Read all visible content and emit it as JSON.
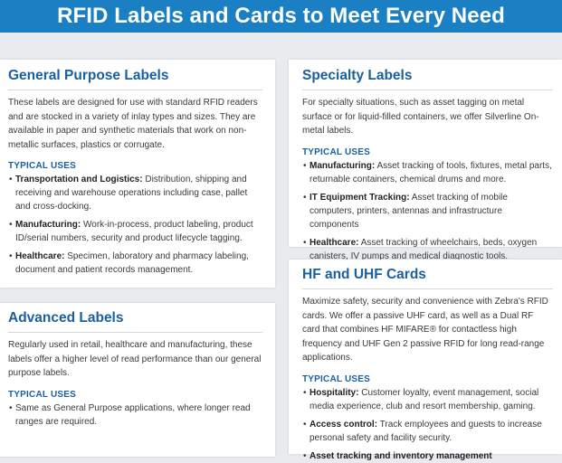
{
  "banner": {
    "title": "RFID Labels and Cards to Meet Every Need"
  },
  "cards": [
    {
      "title": "General Purpose Labels",
      "description": "These labels are designed for use with standard RFID readers and are stocked in a variety of inlay types and sizes. They are available in paper and synthetic materials that work on non-metallic surfaces, plastics or corrugate.",
      "uses_heading": "TYPICAL USES",
      "uses": [
        {
          "label": "Transportation and Logistics:",
          "text": " Distribution, shipping and receiving and warehouse operations including case, pallet and cross-docking."
        },
        {
          "label": "Manufacturing:",
          "text": " Work-in-process, product labeling, product ID/serial numbers, security and product lifecycle tagging."
        },
        {
          "label": "Healthcare:",
          "text": " Specimen, laboratory and pharmacy labeling, document and patient records management."
        }
      ]
    },
    {
      "title": "Advanced Labels",
      "description": "Regularly used in retail, healthcare and manufacturing, these labels offer a higher level of read performance than our general purpose labels.",
      "uses_heading": "TYPICAL USES",
      "uses": [
        {
          "label": "",
          "text": "Same as General Purpose applications, where longer read ranges are required."
        }
      ]
    },
    {
      "title": "Specialty Labels",
      "description": "For specialty situations, such as asset tagging on metal surface or for liquid-filled containers, we offer Silverline On-metal labels.",
      "uses_heading": "TYPICAL USES",
      "uses": [
        {
          "label": "Manufacturing:",
          "text": " Asset tracking of tools, fixtures, metal parts, returnable containers, chemical drums and more."
        },
        {
          "label": "IT Equipment Tracking:",
          "text": " Asset tracking of mobile computers, printers, antennas and infrastructure components"
        },
        {
          "label": "Healthcare:",
          "text": " Asset tracking of wheelchairs, beds, oxygen canisters, IV pumps and medical diagnostic tools."
        }
      ]
    },
    {
      "title": "HF and UHF Cards",
      "description": "Maximize safety, security and convenience with Zebra's RFID cards. We offer a passive UHF card, as well as a Dual RF card that combines HF MIFARE® for contactless high frequency and UHF Gen 2 passive RFID for long read-range applications.",
      "uses_heading": "TYPICAL USES",
      "uses": [
        {
          "label": "Hospitality:",
          "text": " Customer loyalty, event management, social media experience, club and resort membership, gaming."
        },
        {
          "label": "Access control:",
          "text": " Track employees and guests to increase personal safety and facility security."
        },
        {
          "label": "Asset tracking and inventory management",
          "text": ""
        }
      ]
    }
  ]
}
